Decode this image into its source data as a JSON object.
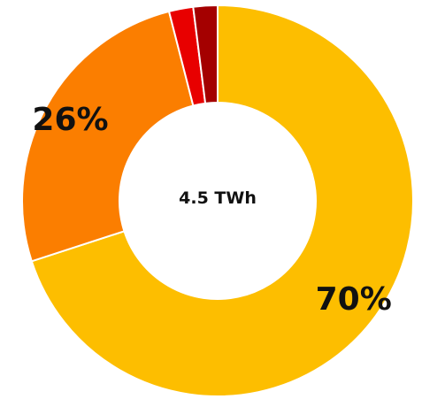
{
  "chart_data": {
    "type": "pie",
    "title": "",
    "center_label": "4.5 TWh",
    "slices": [
      {
        "value": 70,
        "color": "#FDBE00",
        "label": "70%"
      },
      {
        "value": 26,
        "color": "#FB7E00",
        "label": "26%"
      },
      {
        "value": 2,
        "color": "#E80000",
        "label": ""
      },
      {
        "value": 2,
        "color": "#A40000",
        "label": ""
      }
    ],
    "start": "top",
    "direction": "clockwise"
  }
}
